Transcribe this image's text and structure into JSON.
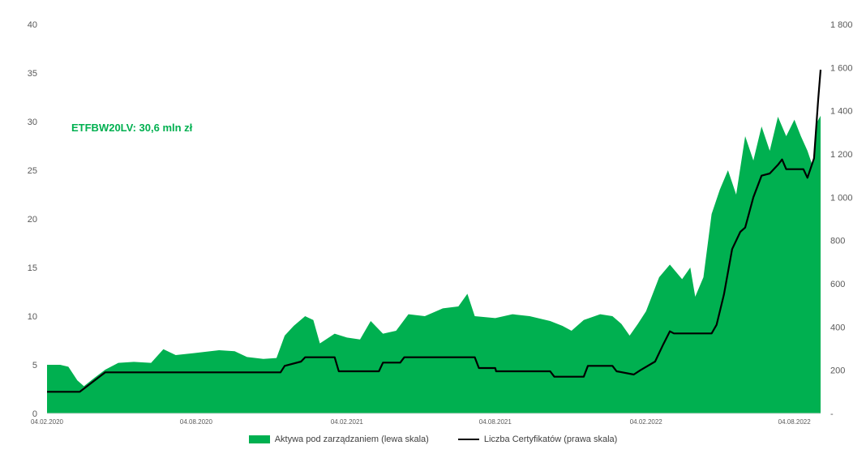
{
  "chart_data": {
    "type": "area",
    "annotation": "ETFBW20LV: 30,6 mln zł",
    "x_ticks": [
      "04.02.2020",
      "04.08.2020",
      "04.02.2021",
      "04.08.2021",
      "04.02.2022",
      "04.08.2022"
    ],
    "x_range": [
      "2020-02-04",
      "2022-09-05"
    ],
    "left_axis": {
      "ylim": [
        0,
        40
      ],
      "ticks": [
        "0",
        "5",
        "10",
        "15",
        "20",
        "25",
        "30",
        "35",
        "40"
      ]
    },
    "right_axis": {
      "ylim": [
        0,
        1800
      ],
      "ticks": [
        "-",
        "200",
        "400",
        "600",
        "800",
        "1 000",
        "1 200",
        "1 400",
        "1 600",
        "1 800"
      ]
    },
    "series": [
      {
        "name": "Aktywa pod zarządzaniem (lewa skala)",
        "type": "area",
        "axis": "left",
        "color": "#00b050",
        "points": [
          [
            "2020-02-04",
            5.0
          ],
          [
            "2020-02-20",
            5.0
          ],
          [
            "2020-03-01",
            4.8
          ],
          [
            "2020-03-12",
            3.4
          ],
          [
            "2020-03-20",
            2.8
          ],
          [
            "2020-04-01",
            3.6
          ],
          [
            "2020-04-15",
            4.5
          ],
          [
            "2020-05-01",
            5.2
          ],
          [
            "2020-05-20",
            5.3
          ],
          [
            "2020-06-10",
            5.2
          ],
          [
            "2020-06-25",
            6.6
          ],
          [
            "2020-07-10",
            6.0
          ],
          [
            "2020-08-01",
            6.2
          ],
          [
            "2020-09-01",
            6.5
          ],
          [
            "2020-09-20",
            6.4
          ],
          [
            "2020-10-05",
            5.8
          ],
          [
            "2020-10-25",
            5.6
          ],
          [
            "2020-11-10",
            5.7
          ],
          [
            "2020-11-20",
            8.0
          ],
          [
            "2020-12-01",
            9.0
          ],
          [
            "2020-12-15",
            10.0
          ],
          [
            "2020-12-25",
            9.6
          ],
          [
            "2021-01-02",
            7.2
          ],
          [
            "2021-01-20",
            8.2
          ],
          [
            "2021-02-04",
            7.8
          ],
          [
            "2021-02-20",
            7.6
          ],
          [
            "2021-03-05",
            9.5
          ],
          [
            "2021-03-20",
            8.2
          ],
          [
            "2021-04-05",
            8.5
          ],
          [
            "2021-04-20",
            10.2
          ],
          [
            "2021-05-10",
            10.0
          ],
          [
            "2021-06-01",
            10.8
          ],
          [
            "2021-06-20",
            11.0
          ],
          [
            "2021-07-01",
            12.3
          ],
          [
            "2021-07-10",
            10.0
          ],
          [
            "2021-08-04",
            9.8
          ],
          [
            "2021-08-25",
            10.2
          ],
          [
            "2021-09-15",
            10.0
          ],
          [
            "2021-10-10",
            9.5
          ],
          [
            "2021-10-25",
            9.0
          ],
          [
            "2021-11-05",
            8.5
          ],
          [
            "2021-11-20",
            9.6
          ],
          [
            "2021-12-10",
            10.2
          ],
          [
            "2021-12-25",
            10.0
          ],
          [
            "2022-01-05",
            9.2
          ],
          [
            "2022-01-15",
            8.0
          ],
          [
            "2022-01-25",
            9.2
          ],
          [
            "2022-02-04",
            10.5
          ],
          [
            "2022-02-20",
            14.0
          ],
          [
            "2022-03-05",
            15.3
          ],
          [
            "2022-03-20",
            13.8
          ],
          [
            "2022-03-30",
            15.0
          ],
          [
            "2022-04-05",
            12.0
          ],
          [
            "2022-04-15",
            14.0
          ],
          [
            "2022-04-25",
            20.5
          ],
          [
            "2022-05-05",
            23.0
          ],
          [
            "2022-05-15",
            25.0
          ],
          [
            "2022-05-25",
            22.5
          ],
          [
            "2022-06-05",
            28.5
          ],
          [
            "2022-06-15",
            26.0
          ],
          [
            "2022-06-25",
            29.5
          ],
          [
            "2022-07-05",
            27.0
          ],
          [
            "2022-07-15",
            30.5
          ],
          [
            "2022-07-25",
            28.5
          ],
          [
            "2022-08-04",
            30.2
          ],
          [
            "2022-08-12",
            28.5
          ],
          [
            "2022-08-20",
            27.0
          ],
          [
            "2022-08-26",
            25.5
          ],
          [
            "2022-09-01",
            30.0
          ],
          [
            "2022-09-05",
            30.6
          ]
        ]
      },
      {
        "name": "Liczba Certyfikatów (prawa skala)",
        "type": "line",
        "axis": "right",
        "color": "#000000",
        "points": [
          [
            "2020-02-04",
            100
          ],
          [
            "2020-03-15",
            100
          ],
          [
            "2020-04-15",
            190
          ],
          [
            "2020-11-15",
            190
          ],
          [
            "2020-11-20",
            220
          ],
          [
            "2020-12-10",
            240
          ],
          [
            "2020-12-15",
            260
          ],
          [
            "2021-01-20",
            260
          ],
          [
            "2021-01-25",
            195
          ],
          [
            "2021-03-15",
            195
          ],
          [
            "2021-03-20",
            235
          ],
          [
            "2021-04-10",
            235
          ],
          [
            "2021-04-15",
            260
          ],
          [
            "2021-07-10",
            260
          ],
          [
            "2021-07-15",
            210
          ],
          [
            "2021-08-04",
            210
          ],
          [
            "2021-08-05",
            195
          ],
          [
            "2021-10-10",
            195
          ],
          [
            "2021-10-15",
            170
          ],
          [
            "2021-11-20",
            170
          ],
          [
            "2021-11-25",
            220
          ],
          [
            "2021-12-25",
            220
          ],
          [
            "2021-12-30",
            195
          ],
          [
            "2022-01-20",
            180
          ],
          [
            "2022-01-28",
            200
          ],
          [
            "2022-02-15",
            240
          ],
          [
            "2022-02-25",
            320
          ],
          [
            "2022-03-05",
            380
          ],
          [
            "2022-03-10",
            370
          ],
          [
            "2022-04-25",
            370
          ],
          [
            "2022-05-01",
            410
          ],
          [
            "2022-05-10",
            550
          ],
          [
            "2022-05-20",
            760
          ],
          [
            "2022-05-30",
            840
          ],
          [
            "2022-06-05",
            860
          ],
          [
            "2022-06-15",
            1000
          ],
          [
            "2022-06-25",
            1100
          ],
          [
            "2022-07-05",
            1110
          ],
          [
            "2022-07-15",
            1150
          ],
          [
            "2022-07-20",
            1175
          ],
          [
            "2022-07-25",
            1130
          ],
          [
            "2022-08-15",
            1130
          ],
          [
            "2022-08-20",
            1090
          ],
          [
            "2022-08-28",
            1180
          ],
          [
            "2022-09-02",
            1450
          ],
          [
            "2022-09-05",
            1590
          ]
        ]
      }
    ],
    "legend_placement": "bottom",
    "grid": false
  },
  "legend": {
    "area_label": "Aktywa pod zarządzaniem (lewa skala)",
    "line_label": "Liczba Certyfikatów (prawa skala)"
  }
}
